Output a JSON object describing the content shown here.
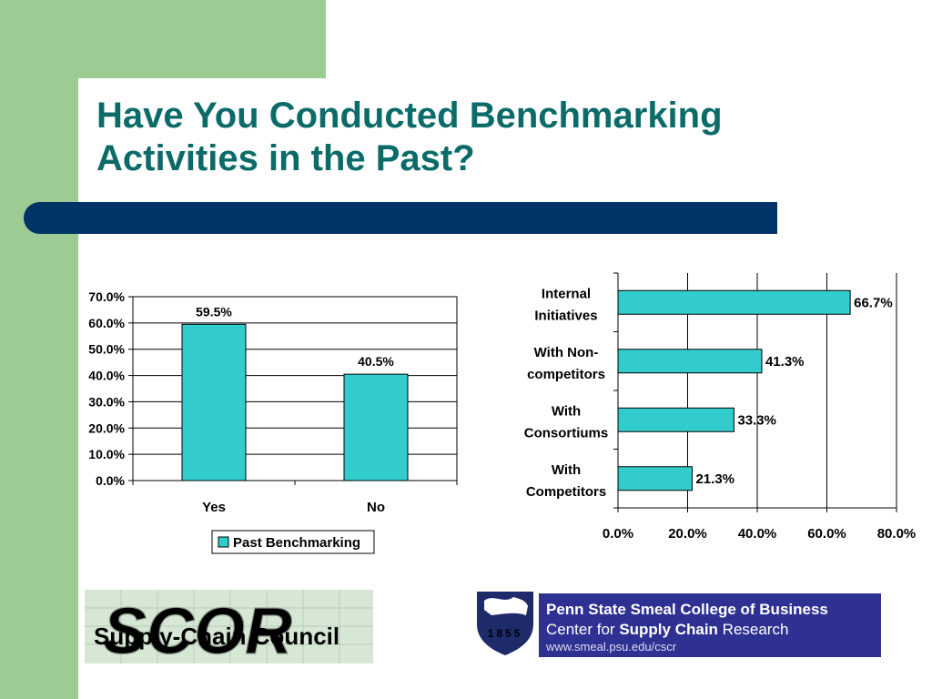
{
  "slide": {
    "title_line1": "Have You Conducted Benchmarking",
    "title_line2": "Activities in the Past?"
  },
  "colors": {
    "accent_green": "#9ccc94",
    "title_teal": "#0b6b68",
    "bar_navy": "#003366",
    "bar_fill": "#33cccc"
  },
  "chart_data": [
    {
      "type": "bar",
      "categories": [
        "Yes",
        "No"
      ],
      "series": [
        {
          "name": "Past Benchmarking",
          "values": [
            59.5,
            40.5
          ]
        }
      ],
      "data_labels": [
        "59.5%",
        "40.5%"
      ],
      "ylim": [
        0,
        70
      ],
      "yticks": [
        "0.0%",
        "10.0%",
        "20.0%",
        "30.0%",
        "40.0%",
        "50.0%",
        "60.0%",
        "70.0%"
      ],
      "grid": true,
      "legend": "bottom"
    },
    {
      "type": "bar",
      "orientation": "horizontal",
      "categories": [
        "Internal Initiatives",
        "With Non-competitors",
        "With Consortiums",
        "With Competitors"
      ],
      "category_lines": [
        [
          "Internal",
          "Initiatives"
        ],
        [
          "With Non-",
          "competitors"
        ],
        [
          "With",
          "Consortiums"
        ],
        [
          "With",
          "Competitors"
        ]
      ],
      "values": [
        66.7,
        41.3,
        33.3,
        21.3
      ],
      "data_labels": [
        "66.7%",
        "41.3%",
        "33.3%",
        "21.3%"
      ],
      "xlim": [
        0,
        80
      ],
      "xticks": [
        "0.0%",
        "20.0%",
        "40.0%",
        "60.0%",
        "80.0%"
      ],
      "grid": true
    }
  ],
  "logos": {
    "scor_big": "SCOR",
    "scor_small": "Supply-Chain Council",
    "psu_year": "1855",
    "psu_line1": "Penn State Smeal College of Business",
    "psu_line2_a": "Center for ",
    "psu_line2_b": "Supply Chain",
    "psu_line2_c": " Research",
    "psu_url": "www.smeal.psu.edu/cscr"
  }
}
